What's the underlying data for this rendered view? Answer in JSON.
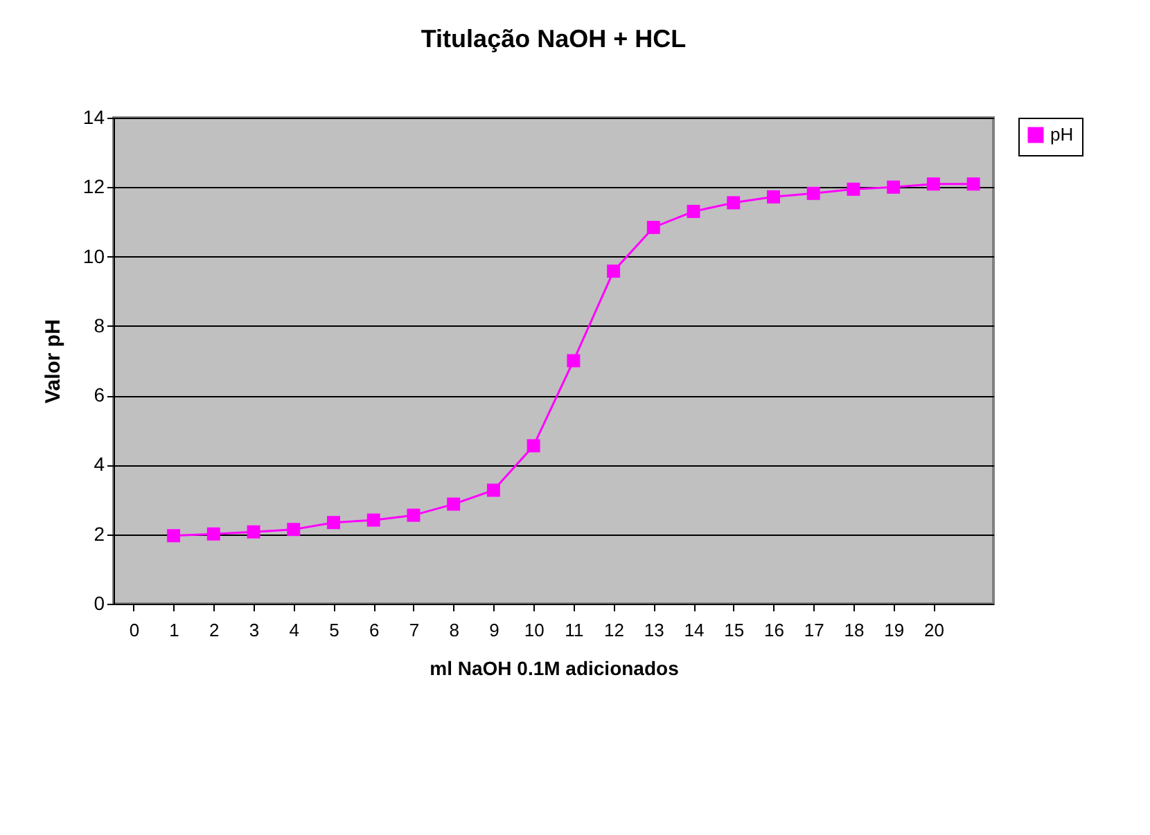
{
  "chart_data": {
    "type": "line",
    "title": "Titulação NaOH + HCL",
    "xlabel": "ml NaOH 0.1M adicionados",
    "ylabel": "Valor pH",
    "x": [
      1,
      2,
      3,
      4,
      5,
      6,
      7,
      8,
      9,
      10,
      11,
      12,
      13,
      14,
      15,
      16,
      17,
      18,
      19,
      20,
      21
    ],
    "series": [
      {
        "name": "pH",
        "color": "#ff00ff",
        "values": [
          1.96,
          2.01,
          2.07,
          2.14,
          2.34,
          2.41,
          2.55,
          2.87,
          3.27,
          4.55,
          7.0,
          9.58,
          10.84,
          11.3,
          11.55,
          11.72,
          11.82,
          11.94,
          12.0,
          12.09,
          12.09
        ]
      }
    ],
    "xlim": [
      -0.5,
      21.5
    ],
    "xticks": [
      0,
      1,
      2,
      3,
      4,
      5,
      6,
      7,
      8,
      9,
      10,
      11,
      12,
      13,
      14,
      15,
      16,
      17,
      18,
      19,
      20
    ],
    "ylim": [
      0,
      14
    ],
    "yticks": [
      0,
      2,
      4,
      6,
      8,
      10,
      12,
      14
    ],
    "grid": "y",
    "legend": "right",
    "marker": "square",
    "line_style": "solid"
  }
}
